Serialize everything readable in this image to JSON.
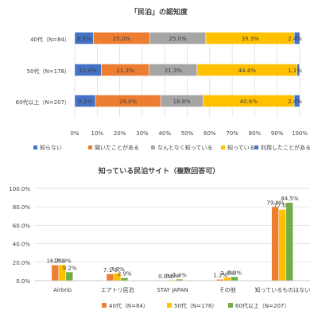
{
  "chart_data": [
    {
      "type": "bar",
      "orientation": "horizontal",
      "stacked": "percent",
      "title": "「民泊」の認知度",
      "categories": [
        "40代（N=84）",
        "50代（N=178）",
        "60代以上（N=207）"
      ],
      "series": [
        {
          "name": "知らない",
          "color": "#4472c4",
          "values": [
            8.3,
            11.8,
            9.2
          ],
          "labels": [
            "8.3%",
            "11.8%",
            "9.2%"
          ]
        },
        {
          "name": "聞いたことがある",
          "color": "#ed7d31",
          "values": [
            25.0,
            21.3,
            29.0
          ],
          "labels": [
            "25.0%",
            "21.3%",
            "29.0%"
          ]
        },
        {
          "name": "なんとなく知っている",
          "color": "#a5a5a5",
          "values": [
            25.0,
            21.3,
            18.8
          ],
          "labels": [
            "25.0%",
            "21.3%",
            "18.8%"
          ]
        },
        {
          "name": "知っている",
          "color": "#ffc000",
          "values": [
            39.3,
            44.4,
            40.6
          ],
          "labels": [
            "39.3%",
            "44.4%",
            "40.6%"
          ]
        },
        {
          "name": "利用したことがある",
          "color": "#4472c4",
          "values": [
            2.4,
            1.1,
            2.4
          ],
          "labels": [
            "2.4%",
            "1.1%",
            "2.4%"
          ]
        }
      ],
      "xticks": [
        "0%",
        "10%",
        "20%",
        "30%",
        "40%",
        "50%",
        "60%",
        "70%",
        "80%",
        "90%",
        "100%"
      ],
      "xlim": [
        0,
        100
      ],
      "grid": true,
      "legend": "bottom"
    },
    {
      "type": "bar",
      "title": "知っている民泊サイト（複数回答可）",
      "categories": [
        "Airbnb",
        "エアトリ民泊",
        "STAY JAPAN",
        "その他",
        "知っているものはない"
      ],
      "series": [
        {
          "name": "40代（N=84）",
          "color": "#ed7d31",
          "values": [
            16.7,
            7.1,
            0.0,
            1.2,
            79.8
          ],
          "labels": [
            "16.7%",
            "7.1%",
            "0.0%",
            "1.2%",
            "79.8%"
          ]
        },
        {
          "name": "50代（N=178）",
          "color": "#ffc000",
          "values": [
            16.9,
            7.9,
            0.6,
            3.4,
            77.0
          ],
          "labels": [
            "16.9%",
            "7.9%",
            "0.6%",
            "3.4%",
            "77.0%"
          ]
        },
        {
          "name": "60代以上（N=207）",
          "color": "#70ad47",
          "values": [
            9.2,
            2.9,
            1.4,
            3.9,
            84.5
          ],
          "labels": [
            "9.2%",
            "2.9%",
            "1.4%",
            "3.9%",
            "84.5%"
          ]
        }
      ],
      "yticks": [
        "0.0%",
        "20.0%",
        "40.0%",
        "60.0%",
        "80.0%",
        "100.0%"
      ],
      "ylim": [
        0,
        100
      ],
      "grid": true,
      "legend": "bottom"
    }
  ]
}
